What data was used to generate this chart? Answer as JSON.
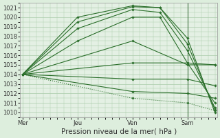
{
  "xlabel": "Pression niveau de la mer( hPa )",
  "background_color": "#ddeedd",
  "plot_bg_color": "#e4f0e4",
  "grid_color": "#aaccaa",
  "ylim": [
    1009.5,
    1021.5
  ],
  "yticks": [
    1010,
    1011,
    1012,
    1013,
    1014,
    1015,
    1016,
    1017,
    1018,
    1019,
    1020,
    1021
  ],
  "day_labels": [
    "Mer",
    "Jeu",
    "Ven",
    "Sam"
  ],
  "day_positions": [
    0,
    48,
    96,
    144
  ],
  "line_color": "#2a6e2a",
  "lines": [
    {
      "x": [
        0,
        48,
        96,
        120,
        144,
        168
      ],
      "y": [
        1014.0,
        1020.0,
        1021.2,
        1021.0,
        1017.8,
        1010.0
      ]
    },
    {
      "x": [
        0,
        48,
        96,
        120,
        144,
        168
      ],
      "y": [
        1014.0,
        1019.5,
        1021.1,
        1021.0,
        1017.2,
        1010.3
      ]
    },
    {
      "x": [
        0,
        48,
        96,
        120,
        144,
        168
      ],
      "y": [
        1014.0,
        1018.8,
        1020.8,
        1020.5,
        1016.5,
        1010.5
      ]
    },
    {
      "x": [
        0,
        48,
        96,
        120,
        144,
        168
      ],
      "y": [
        1014.0,
        1017.5,
        1020.0,
        1020.0,
        1015.2,
        1011.0
      ]
    },
    {
      "x": [
        0,
        96,
        144,
        168
      ],
      "y": [
        1014.0,
        1017.5,
        1015.0,
        1015.0
      ]
    },
    {
      "x": [
        0,
        96,
        144,
        168
      ],
      "y": [
        1014.0,
        1015.2,
        1015.2,
        1015.0
      ]
    },
    {
      "x": [
        0,
        96,
        144,
        168
      ],
      "y": [
        1014.0,
        1013.5,
        1013.5,
        1012.8
      ]
    },
    {
      "x": [
        0,
        96,
        144,
        168
      ],
      "y": [
        1014.0,
        1012.2,
        1012.0,
        1011.5
      ]
    },
    {
      "x": [
        0,
        96,
        144,
        168
      ],
      "y": [
        1014.0,
        1011.5,
        1011.0,
        1010.2
      ],
      "dotted": true
    }
  ],
  "vline_x": 144,
  "vline_color": "#3a6e3a",
  "font_color": "#333333",
  "tick_fontsize": 6.0,
  "label_fontsize": 7.5
}
